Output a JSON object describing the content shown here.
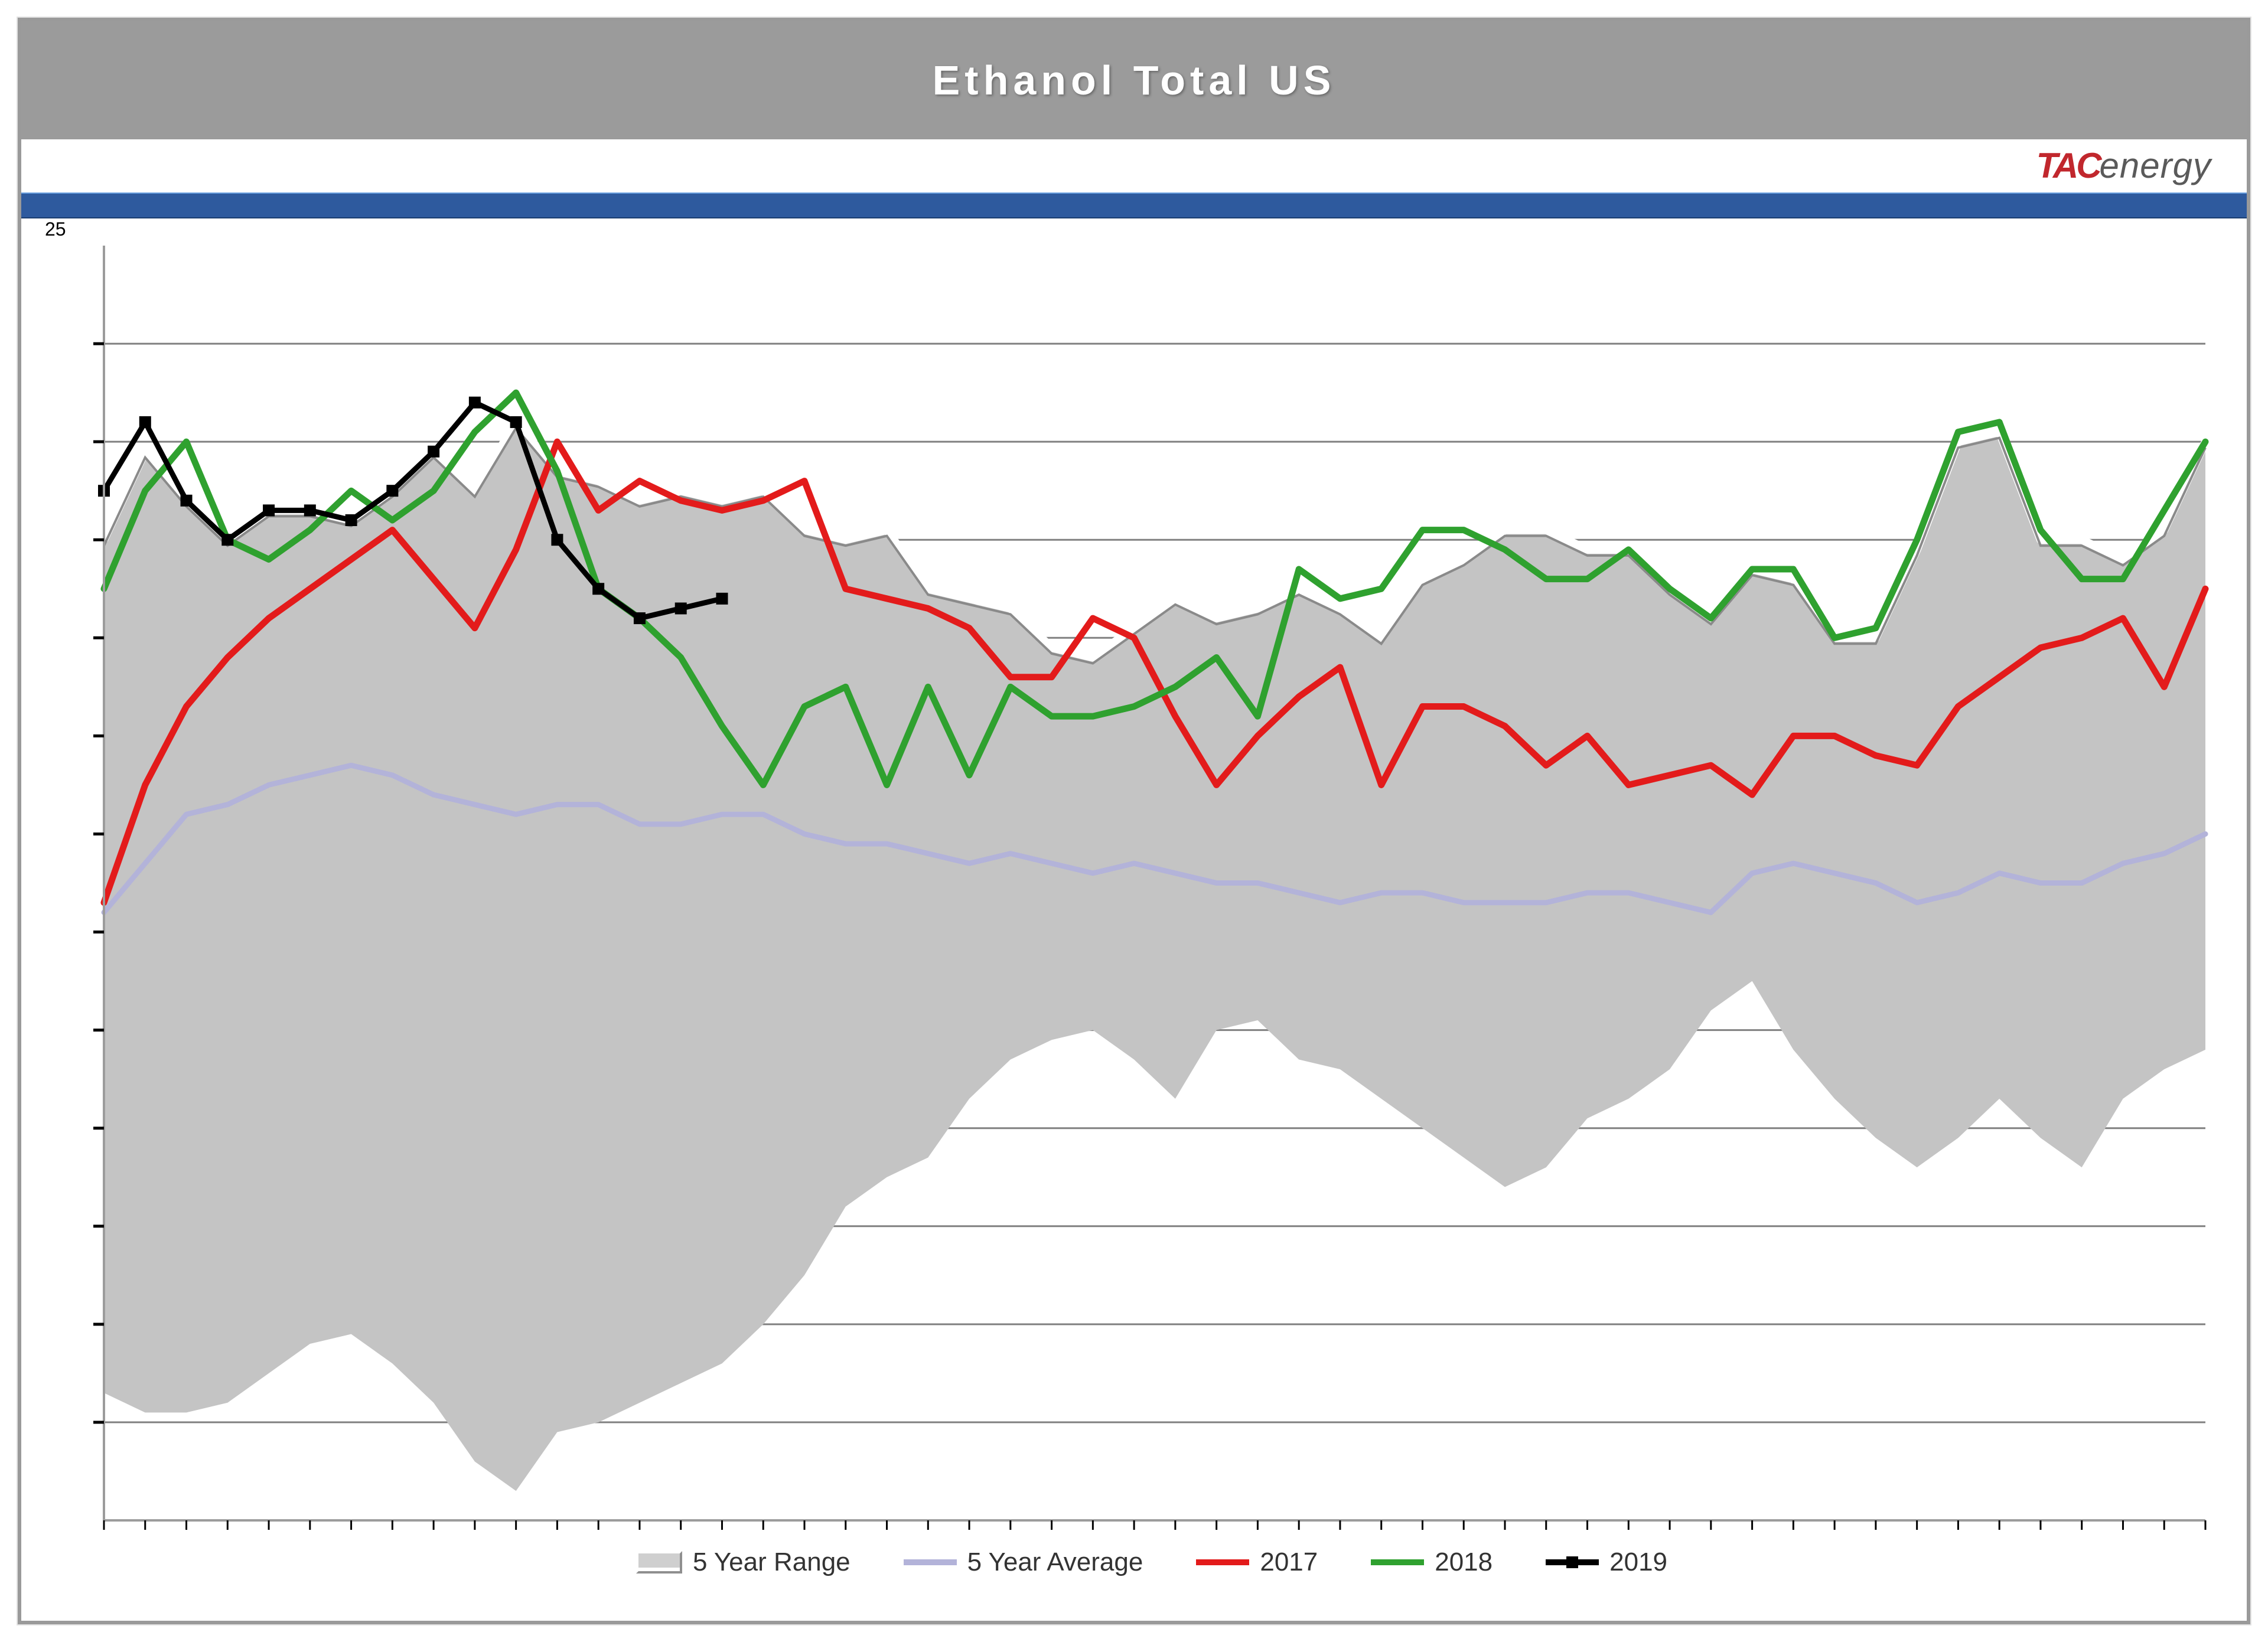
{
  "title": "Ethanol Total US",
  "logo": {
    "tac": "TAC",
    "energy": "energy"
  },
  "y_top_label": "25",
  "legend": {
    "range": "5 Year Range",
    "avg": "5 Year Average",
    "y2017": "2017",
    "y2018": "2018",
    "y2019": "2019"
  },
  "chart": {
    "type": "line+area",
    "background_color": "#ffffff",
    "plot_border_color": "#9c9c9c",
    "gridline_color": "#808080",
    "gridline_width": 3,
    "tick_color": "#000000",
    "n_points": 52,
    "ylim": [
      12,
      25
    ],
    "y_gridlines": [
      13,
      14,
      15,
      16,
      17,
      18,
      19,
      20,
      21,
      22,
      23,
      24
    ],
    "series": {
      "range_high": [
        22.0,
        22.9,
        22.4,
        22.0,
        22.3,
        22.3,
        22.2,
        22.5,
        22.9,
        22.5,
        23.2,
        22.7,
        22.6,
        22.4,
        22.5,
        22.4,
        22.5,
        22.1,
        22.0,
        22.1,
        21.5,
        21.4,
        21.3,
        20.9,
        20.8,
        21.1,
        21.4,
        21.2,
        21.3,
        21.5,
        21.3,
        21.0,
        21.6,
        21.8,
        22.1,
        22.1,
        21.9,
        21.9,
        21.5,
        21.2,
        21.7,
        21.6,
        21.0,
        21.0,
        21.9,
        23.0,
        23.1,
        22.0,
        22.0,
        21.8,
        22.1,
        23.0
      ],
      "range_low": [
        13.3,
        13.1,
        13.1,
        13.2,
        13.5,
        13.8,
        13.9,
        13.6,
        13.2,
        12.6,
        12.3,
        12.9,
        13.0,
        13.2,
        13.4,
        13.6,
        14.0,
        14.5,
        15.2,
        15.5,
        15.7,
        16.3,
        16.7,
        16.9,
        17.0,
        16.7,
        16.3,
        17.0,
        17.1,
        16.7,
        16.6,
        16.3,
        16.0,
        15.7,
        15.4,
        15.6,
        16.1,
        16.3,
        16.6,
        17.2,
        17.5,
        16.8,
        16.3,
        15.9,
        15.6,
        15.9,
        16.3,
        15.9,
        15.6,
        16.3,
        16.6,
        16.8
      ],
      "avg": [
        18.2,
        18.7,
        19.2,
        19.3,
        19.5,
        19.6,
        19.7,
        19.6,
        19.4,
        19.3,
        19.2,
        19.3,
        19.3,
        19.1,
        19.1,
        19.2,
        19.2,
        19.0,
        18.9,
        18.9,
        18.8,
        18.7,
        18.8,
        18.7,
        18.6,
        18.7,
        18.6,
        18.5,
        18.5,
        18.4,
        18.3,
        18.4,
        18.4,
        18.3,
        18.3,
        18.3,
        18.4,
        18.4,
        18.3,
        18.2,
        18.6,
        18.7,
        18.6,
        18.5,
        18.3,
        18.4,
        18.6,
        18.5,
        18.5,
        18.7,
        18.8,
        19.0
      ],
      "y2017": [
        18.3,
        19.5,
        20.3,
        20.8,
        21.2,
        21.5,
        21.8,
        22.1,
        21.6,
        21.1,
        21.9,
        23.0,
        22.3,
        22.6,
        22.4,
        22.3,
        22.4,
        22.6,
        21.5,
        21.4,
        21.3,
        21.1,
        20.6,
        20.6,
        21.2,
        21.0,
        20.2,
        19.5,
        20.0,
        20.4,
        20.7,
        19.5,
        20.3,
        20.3,
        20.1,
        19.7,
        20.0,
        19.5,
        19.6,
        19.7,
        19.4,
        20.0,
        20.0,
        19.8,
        19.7,
        20.3,
        20.6,
        20.9,
        21.0,
        21.2,
        20.5,
        21.5
      ],
      "y2018": [
        21.5,
        22.5,
        23.0,
        22.0,
        21.8,
        22.1,
        22.5,
        22.2,
        22.5,
        23.1,
        23.5,
        22.7,
        21.5,
        21.2,
        20.8,
        20.1,
        19.5,
        20.3,
        20.5,
        19.5,
        20.5,
        19.6,
        20.5,
        20.2,
        20.2,
        20.3,
        20.5,
        20.8,
        20.2,
        21.7,
        21.4,
        21.5,
        22.1,
        22.1,
        21.9,
        21.6,
        21.6,
        21.9,
        21.5,
        21.2,
        21.7,
        21.7,
        21.0,
        21.1,
        22.0,
        23.1,
        23.2,
        22.1,
        21.6,
        21.6,
        22.3,
        23.0
      ],
      "y2019": [
        22.5,
        23.2,
        22.4,
        22.0,
        22.3,
        22.3,
        22.2,
        22.5,
        22.9,
        23.4,
        23.2,
        22.0,
        21.5,
        21.2,
        21.3,
        21.4
      ]
    },
    "colors": {
      "range_fill": "#c4c4c4",
      "range_stroke_white": "#ffffff",
      "range_stroke_grey": "#8a8a8a",
      "avg": "#b3b3d9",
      "y2017": "#e31b1b",
      "y2018": "#2fa12f",
      "y2019": "#000000"
    },
    "line_width": {
      "avg": 9,
      "year": 11,
      "y2019": 9
    },
    "marker": {
      "y2019_size": 20
    }
  }
}
